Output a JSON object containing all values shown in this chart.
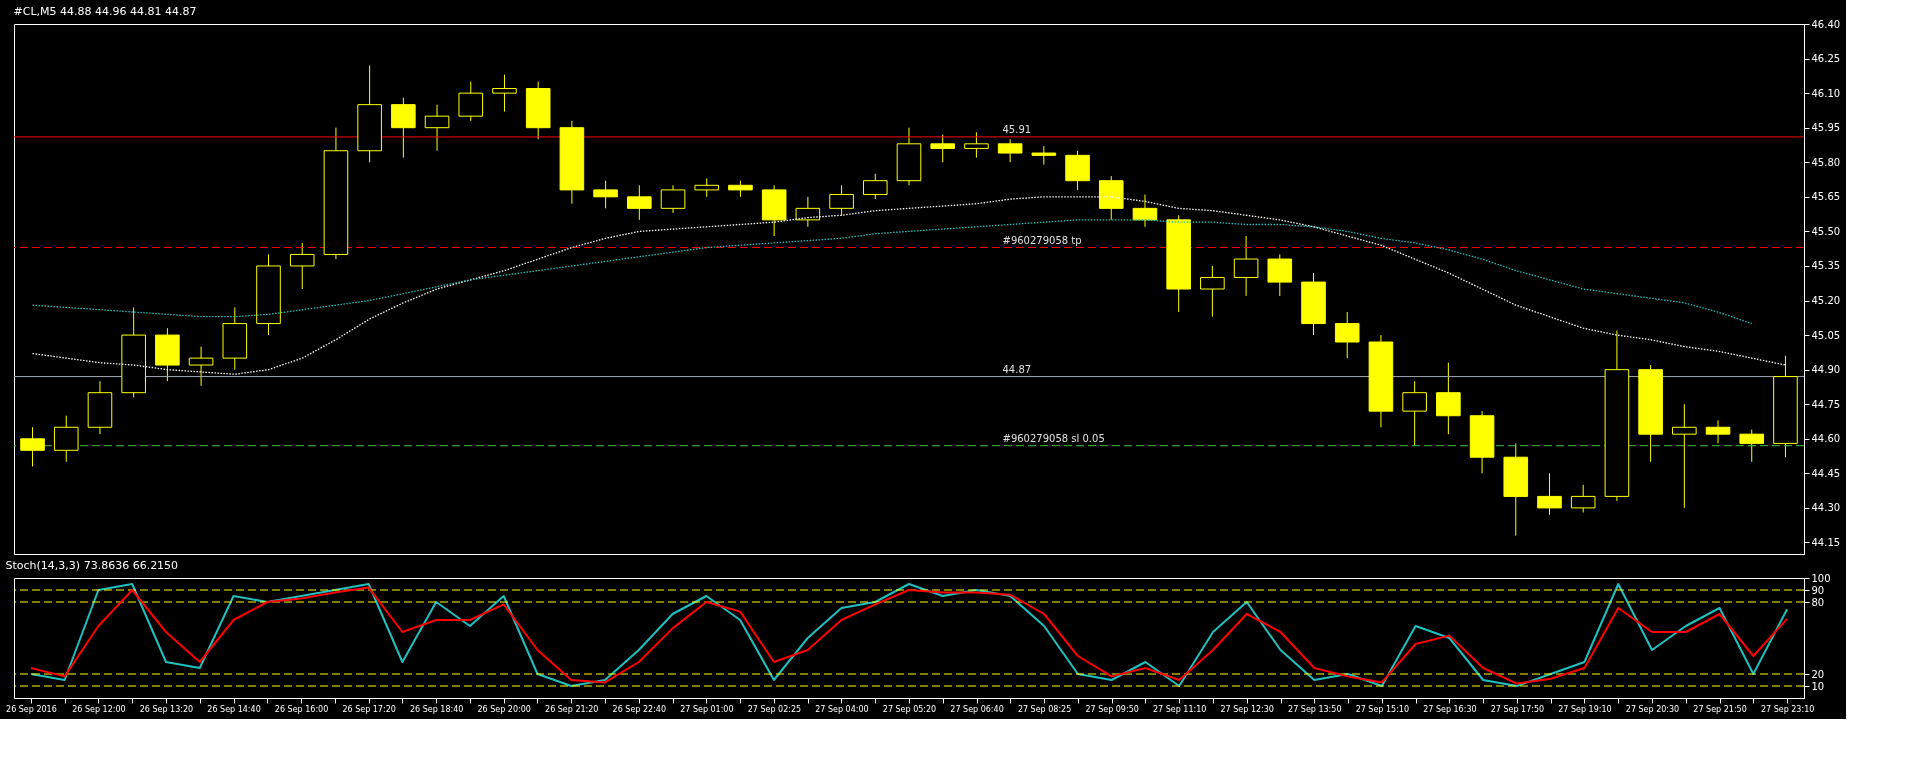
{
  "chart_data": [
    {
      "type": "candlestick",
      "title": "#CL,M5  44.88 44.96 44.81 44.87",
      "series": [
        {
          "type": "candlestick",
          "color": "#ffff00",
          "ohlc": [
            [
              44.6,
              44.65,
              44.48,
              44.55
            ],
            [
              44.55,
              44.7,
              44.5,
              44.65
            ],
            [
              44.65,
              44.85,
              44.62,
              44.8
            ],
            [
              44.8,
              45.17,
              44.78,
              45.05
            ],
            [
              45.05,
              45.08,
              44.85,
              44.92
            ],
            [
              44.92,
              45.0,
              44.83,
              44.95
            ],
            [
              44.95,
              45.17,
              44.9,
              45.1
            ],
            [
              45.1,
              45.4,
              45.05,
              45.35
            ],
            [
              45.35,
              45.45,
              45.25,
              45.4
            ],
            [
              45.4,
              45.95,
              45.38,
              45.85
            ],
            [
              45.85,
              46.22,
              45.8,
              46.05
            ],
            [
              46.05,
              46.08,
              45.82,
              45.95
            ],
            [
              45.95,
              46.05,
              45.85,
              46.0
            ],
            [
              46.0,
              46.15,
              45.98,
              46.1
            ],
            [
              46.1,
              46.18,
              46.02,
              46.12
            ],
            [
              46.12,
              46.15,
              45.9,
              45.95
            ],
            [
              45.95,
              45.98,
              45.62,
              45.68
            ],
            [
              45.68,
              45.72,
              45.6,
              45.65
            ],
            [
              45.65,
              45.7,
              45.55,
              45.6
            ],
            [
              45.6,
              45.7,
              45.58,
              45.68
            ],
            [
              45.68,
              45.73,
              45.65,
              45.7
            ],
            [
              45.7,
              45.72,
              45.65,
              45.68
            ],
            [
              45.68,
              45.7,
              45.48,
              45.55
            ],
            [
              45.55,
              45.65,
              45.52,
              45.6
            ],
            [
              45.6,
              45.7,
              45.57,
              45.66
            ],
            [
              45.66,
              45.75,
              45.64,
              45.72
            ],
            [
              45.72,
              45.95,
              45.7,
              45.88
            ],
            [
              45.88,
              45.92,
              45.8,
              45.86
            ],
            [
              45.86,
              45.93,
              45.82,
              45.88
            ],
            [
              45.88,
              45.9,
              45.8,
              45.84
            ],
            [
              45.84,
              45.87,
              45.79,
              45.83
            ],
            [
              45.83,
              45.85,
              45.68,
              45.72
            ],
            [
              45.72,
              45.74,
              45.55,
              45.6
            ],
            [
              45.6,
              45.66,
              45.52,
              45.55
            ],
            [
              45.55,
              45.57,
              45.15,
              45.25
            ],
            [
              45.25,
              45.35,
              45.13,
              45.3
            ],
            [
              45.3,
              45.48,
              45.22,
              45.38
            ],
            [
              45.38,
              45.4,
              45.22,
              45.28
            ],
            [
              45.28,
              45.32,
              45.05,
              45.1
            ],
            [
              45.1,
              45.15,
              44.95,
              45.02
            ],
            [
              45.02,
              45.05,
              44.65,
              44.72
            ],
            [
              44.72,
              44.85,
              44.57,
              44.8
            ],
            [
              44.8,
              44.93,
              44.62,
              44.7
            ],
            [
              44.7,
              44.72,
              44.45,
              44.52
            ],
            [
              44.52,
              44.58,
              44.18,
              44.35
            ],
            [
              44.35,
              44.45,
              44.27,
              44.3
            ],
            [
              44.3,
              44.4,
              44.28,
              44.35
            ],
            [
              44.35,
              45.07,
              44.33,
              44.9
            ],
            [
              44.9,
              44.92,
              44.5,
              44.62
            ],
            [
              44.62,
              44.75,
              44.3,
              44.65
            ],
            [
              44.65,
              44.68,
              44.58,
              44.62
            ],
            [
              44.62,
              44.64,
              44.5,
              44.58
            ],
            [
              44.58,
              44.96,
              44.52,
              44.87
            ]
          ]
        },
        {
          "type": "line",
          "color": "#ffffff",
          "line_style": "dotted",
          "values": [
            44.97,
            44.95,
            44.93,
            44.92,
            44.9,
            44.89,
            44.88,
            44.9,
            44.95,
            45.03,
            45.12,
            45.19,
            45.25,
            45.29,
            45.33,
            45.38,
            45.43,
            45.47,
            45.5,
            45.51,
            45.52,
            45.53,
            45.54,
            45.56,
            45.57,
            45.59,
            45.6,
            45.61,
            45.62,
            45.64,
            45.65,
            45.65,
            45.65,
            45.63,
            45.6,
            45.59,
            45.57,
            45.55,
            45.52,
            45.48,
            45.44,
            45.38,
            45.32,
            45.25,
            45.18,
            45.13,
            45.08,
            45.05,
            45.03,
            45.0,
            44.98,
            44.95,
            44.92
          ]
        },
        {
          "type": "line",
          "color": "#20c0c0",
          "line_style": "dotted",
          "values": [
            45.18,
            45.17,
            45.16,
            45.15,
            45.14,
            45.13,
            45.13,
            45.14,
            45.16,
            45.18,
            45.2,
            45.23,
            45.26,
            45.29,
            45.31,
            45.33,
            45.35,
            45.37,
            45.39,
            45.41,
            45.43,
            45.44,
            45.45,
            45.46,
            45.47,
            45.49,
            45.5,
            45.51,
            45.52,
            45.53,
            45.54,
            45.55,
            45.55,
            45.55,
            45.54,
            45.54,
            45.53,
            45.53,
            45.52,
            45.5,
            45.47,
            45.45,
            45.42,
            45.38,
            45.33,
            45.29,
            45.25,
            45.23,
            45.21,
            45.19,
            45.15,
            45.1,
            null
          ]
        }
      ],
      "ylim": [
        44.1,
        46.4
      ],
      "yticks": [
        {
          "value": 44.15,
          "label": "44.15"
        },
        {
          "value": 44.3,
          "label": "44.30"
        },
        {
          "value": 44.45,
          "label": "44.45"
        },
        {
          "value": 44.6,
          "label": "44.60"
        },
        {
          "value": 44.75,
          "label": "44.75"
        },
        {
          "value": 44.9,
          "label": "44.90"
        },
        {
          "value": 45.05,
          "label": "45.05"
        },
        {
          "value": 45.2,
          "label": "45.20"
        },
        {
          "value": 45.35,
          "label": "45.35"
        },
        {
          "value": 45.5,
          "label": "45.50"
        },
        {
          "value": 45.65,
          "label": "45.65"
        },
        {
          "value": 45.8,
          "label": "45.80"
        },
        {
          "value": 45.95,
          "label": "45.95"
        },
        {
          "value": 46.1,
          "label": "46.10"
        },
        {
          "value": 46.25,
          "label": "46.25"
        },
        {
          "value": 46.4,
          "label": "46.40"
        }
      ],
      "ref_lines": [
        {
          "axis": "y",
          "value": 45.91,
          "label": "45.91",
          "color": "#ff0000",
          "line_style": "solid"
        },
        {
          "axis": "y",
          "value": 45.43,
          "label": "#960279058 tp",
          "color": "#ff0000",
          "line_style": "dashed"
        },
        {
          "axis": "y",
          "value": 44.87,
          "label": "44.87",
          "color": "#a0a8b0",
          "line_style": "solid"
        },
        {
          "axis": "y",
          "value": 44.57,
          "label": "#960279058 sl 0.05",
          "color": "#40c040",
          "line_style": "dashed"
        }
      ],
      "tick_labels": "y"
    },
    {
      "type": "line",
      "title": "Stoch(14,3,3) 73.8636 66.2150",
      "categories": [
        "26 Sep 2016",
        null,
        "26 Sep 12:00",
        null,
        "26 Sep 13:20",
        null,
        "26 Sep 14:40",
        null,
        "26 Sep 16:00",
        null,
        "26 Sep 17:20",
        null,
        "26 Sep 18:40",
        null,
        "26 Sep 20:00",
        null,
        "26 Sep 21:20",
        null,
        "26 Sep 22:40",
        null,
        "27 Sep 01:00",
        null,
        "27 Sep 02:25",
        null,
        "27 Sep 04:00",
        null,
        "27 Sep 05:20",
        null,
        "27 Sep 06:40",
        null,
        "27 Sep 08:25",
        null,
        "27 Sep 09:50",
        null,
        "27 Sep 11:10",
        null,
        "27 Sep 12:30",
        null,
        "27 Sep 13:50",
        null,
        "27 Sep 15:10",
        null,
        "27 Sep 16:30",
        null,
        "27 Sep 17:50",
        null,
        "27 Sep 19:10",
        null,
        "27 Sep 20:30",
        null,
        "27 Sep 21:50",
        null,
        "27 Sep 23:10"
      ],
      "series": [
        {
          "color": "#20c0c0",
          "values": [
            20,
            15,
            90,
            95,
            30,
            25,
            85,
            80,
            85,
            90,
            95,
            30,
            80,
            60,
            85,
            20,
            10,
            15,
            40,
            70,
            85,
            65,
            15,
            50,
            75,
            80,
            95,
            85,
            90,
            85,
            60,
            20,
            15,
            30,
            10,
            55,
            80,
            40,
            15,
            20,
            10,
            60,
            50,
            15,
            10,
            20,
            30,
            95,
            40,
            60,
            75,
            20,
            74
          ]
        },
        {
          "color": "#ff0000",
          "values": [
            25,
            18,
            60,
            90,
            55,
            30,
            65,
            80,
            83,
            88,
            92,
            55,
            65,
            65,
            78,
            40,
            15,
            13,
            30,
            58,
            80,
            72,
            30,
            40,
            65,
            78,
            90,
            88,
            88,
            86,
            70,
            35,
            18,
            25,
            15,
            40,
            70,
            55,
            25,
            18,
            13,
            45,
            52,
            25,
            12,
            16,
            25,
            75,
            55,
            55,
            70,
            35,
            66
          ]
        }
      ],
      "ylim": [
        0,
        100
      ],
      "yticks": [
        10,
        20,
        80,
        90,
        100
      ],
      "ref_lines": [
        {
          "axis": "y",
          "value": 90,
          "color": "#ffff00",
          "line_style": "dashed"
        },
        {
          "axis": "y",
          "value": 80,
          "color": "#ffff00",
          "line_style": "dashed"
        },
        {
          "axis": "y",
          "value": 20,
          "color": "#ffff00",
          "line_style": "dashed"
        },
        {
          "axis": "y",
          "value": 10,
          "color": "#ffff00",
          "line_style": "dashed"
        }
      ]
    }
  ]
}
